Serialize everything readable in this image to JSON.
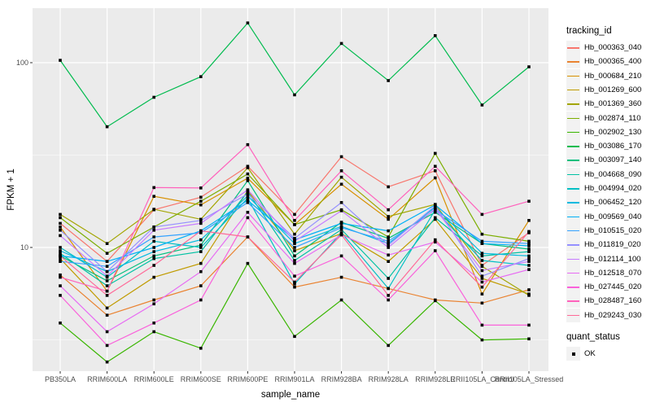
{
  "figure": {
    "y_axis_title": "FPKM + 1",
    "x_axis_title": "sample_name",
    "y_tick_labels": [
      "100",
      "10"
    ]
  },
  "legend": {
    "tracking_title": "tracking_id",
    "quant_title": "quant_status",
    "quant_ok_label": "OK"
  },
  "colors": {
    "panel_background": "#EBEBEB",
    "gridline": "#FFFFFF",
    "axis_text": "#4D4D4D",
    "point": "#000000"
  },
  "chart_data": {
    "type": "line",
    "title": "",
    "xlabel": "sample_name",
    "ylabel": "FPKM + 1",
    "x_categories": [
      "PB350LA",
      "RRIM600LA",
      "RRIM600LE",
      "RRIM600SE",
      "RRIM600PE",
      "RRIM901LA",
      "RRIM928BA",
      "RRIM928LA",
      "RRIM928LE",
      "RRII105LA_Control",
      "RRII105LA_Stressed"
    ],
    "y_scale": "log10",
    "y_major_ticks": [
      10,
      100
    ],
    "y_minor_ticks": [
      3.162,
      31.623
    ],
    "ylim": [
      2.1,
      200
    ],
    "grid": "on",
    "legend_position": "right",
    "point_marker": "filled-black-square",
    "quant_status": {
      "title": "quant_status",
      "items": [
        "OK"
      ]
    },
    "series": [
      {
        "name": "Hb_000363_040",
        "color": "#F8766D",
        "values": [
          13.5,
          8.4,
          16.0,
          18.7,
          27.5,
          15.1,
          31.0,
          21.3,
          26.0,
          8.0,
          12.0
        ]
      },
      {
        "name": "Hb_000365_400",
        "color": "#EA8331",
        "values": [
          7.1,
          4.3,
          5.2,
          6.2,
          11.4,
          6.1,
          6.9,
          6.0,
          5.2,
          5.0,
          5.9
        ]
      },
      {
        "name": "Hb_000684_210",
        "color": "#D89000",
        "values": [
          12.9,
          5.8,
          18.9,
          17.0,
          23.7,
          13.3,
          22.0,
          14.2,
          23.8,
          5.6,
          14.0
        ]
      },
      {
        "name": "Hb_001269_600",
        "color": "#C09B00",
        "values": [
          8.7,
          4.7,
          6.9,
          8.2,
          20.3,
          9.6,
          11.9,
          8.4,
          14.2,
          6.8,
          5.6
        ]
      },
      {
        "name": "Hb_001369_360",
        "color": "#A3A500",
        "values": [
          15.1,
          10.5,
          16.1,
          14.2,
          27.0,
          11.8,
          24.0,
          14.7,
          17.1,
          7.9,
          5.5
        ]
      },
      {
        "name": "Hb_002874_110",
        "color": "#7CAE00",
        "values": [
          14.5,
          9.3,
          12.9,
          17.8,
          25.0,
          13.3,
          16.0,
          11.4,
          32.3,
          11.8,
          10.8
        ]
      },
      {
        "name": "Hb_002902_130",
        "color": "#39B600",
        "values": [
          3.9,
          2.4,
          3.5,
          2.85,
          8.2,
          3.3,
          5.2,
          2.95,
          5.15,
          3.16,
          3.2
        ]
      },
      {
        "name": "Hb_003086_170",
        "color": "#00BB4E",
        "values": [
          103,
          45,
          65,
          84,
          164,
          67,
          127,
          80,
          140,
          59,
          95
        ]
      },
      {
        "name": "Hb_003097_140",
        "color": "#00BF7D",
        "values": [
          9.0,
          6.6,
          9.0,
          10.3,
          23.0,
          9.0,
          13.7,
          11.2,
          15.5,
          10.5,
          9.8
        ]
      },
      {
        "name": "Hb_004668_090",
        "color": "#00C1A3",
        "values": [
          9.3,
          6.2,
          8.7,
          9.5,
          20.0,
          8.5,
          12.5,
          6.8,
          14.5,
          9.0,
          9.5
        ]
      },
      {
        "name": "Hb_004994_020",
        "color": "#00BFC4",
        "values": [
          10.0,
          6.9,
          10.8,
          10.0,
          18.5,
          6.35,
          12.0,
          6.0,
          16.0,
          8.5,
          8.0
        ]
      },
      {
        "name": "Hb_006452_120",
        "color": "#00BAE0",
        "values": [
          9.6,
          7.4,
          9.5,
          11.0,
          19.0,
          10.5,
          13.0,
          10.5,
          16.5,
          9.3,
          9.0
        ]
      },
      {
        "name": "Hb_009569_040",
        "color": "#00B0F6",
        "values": [
          9.0,
          8.4,
          10.0,
          12.3,
          18.0,
          11.0,
          13.5,
          12.3,
          17.0,
          10.5,
          10.2
        ]
      },
      {
        "name": "Hb_010515_020",
        "color": "#35A2FF",
        "values": [
          8.4,
          7.9,
          11.4,
          12.0,
          17.5,
          10.0,
          12.8,
          10.8,
          16.0,
          10.8,
          10.5
        ]
      },
      {
        "name": "Hb_011819_020",
        "color": "#9590FF",
        "values": [
          12.4,
          7.4,
          12.9,
          14.0,
          19.5,
          11.2,
          17.5,
          10.3,
          16.8,
          7.0,
          8.7
        ]
      },
      {
        "name": "Hb_012114_100",
        "color": "#C77CFF",
        "values": [
          11.6,
          7.0,
          12.4,
          13.5,
          20.5,
          10.8,
          15.8,
          10.0,
          16.2,
          7.5,
          8.4
        ]
      },
      {
        "name": "Hb_012518_070",
        "color": "#E76BF3",
        "values": [
          6.2,
          3.5,
          4.95,
          7.4,
          15.5,
          8.2,
          11.7,
          9.1,
          10.7,
          6.5,
          7.6
        ]
      },
      {
        "name": "Hb_027445_020",
        "color": "#FA62DB",
        "values": [
          5.5,
          2.95,
          3.9,
          5.2,
          14.5,
          7.0,
          9.0,
          5.2,
          9.6,
          3.8,
          3.8
        ]
      },
      {
        "name": "Hb_028487_160",
        "color": "#FF62BC",
        "values": [
          6.9,
          5.8,
          21.1,
          21.0,
          36.0,
          14.0,
          26.0,
          16.0,
          27.5,
          15.1,
          17.8
        ]
      },
      {
        "name": "Hb_029243_030",
        "color": "#FF6A98",
        "values": [
          9.0,
          5.5,
          8.0,
          12.3,
          11.4,
          6.5,
          11.7,
          5.5,
          11.0,
          6.1,
          12.2
        ]
      }
    ]
  }
}
